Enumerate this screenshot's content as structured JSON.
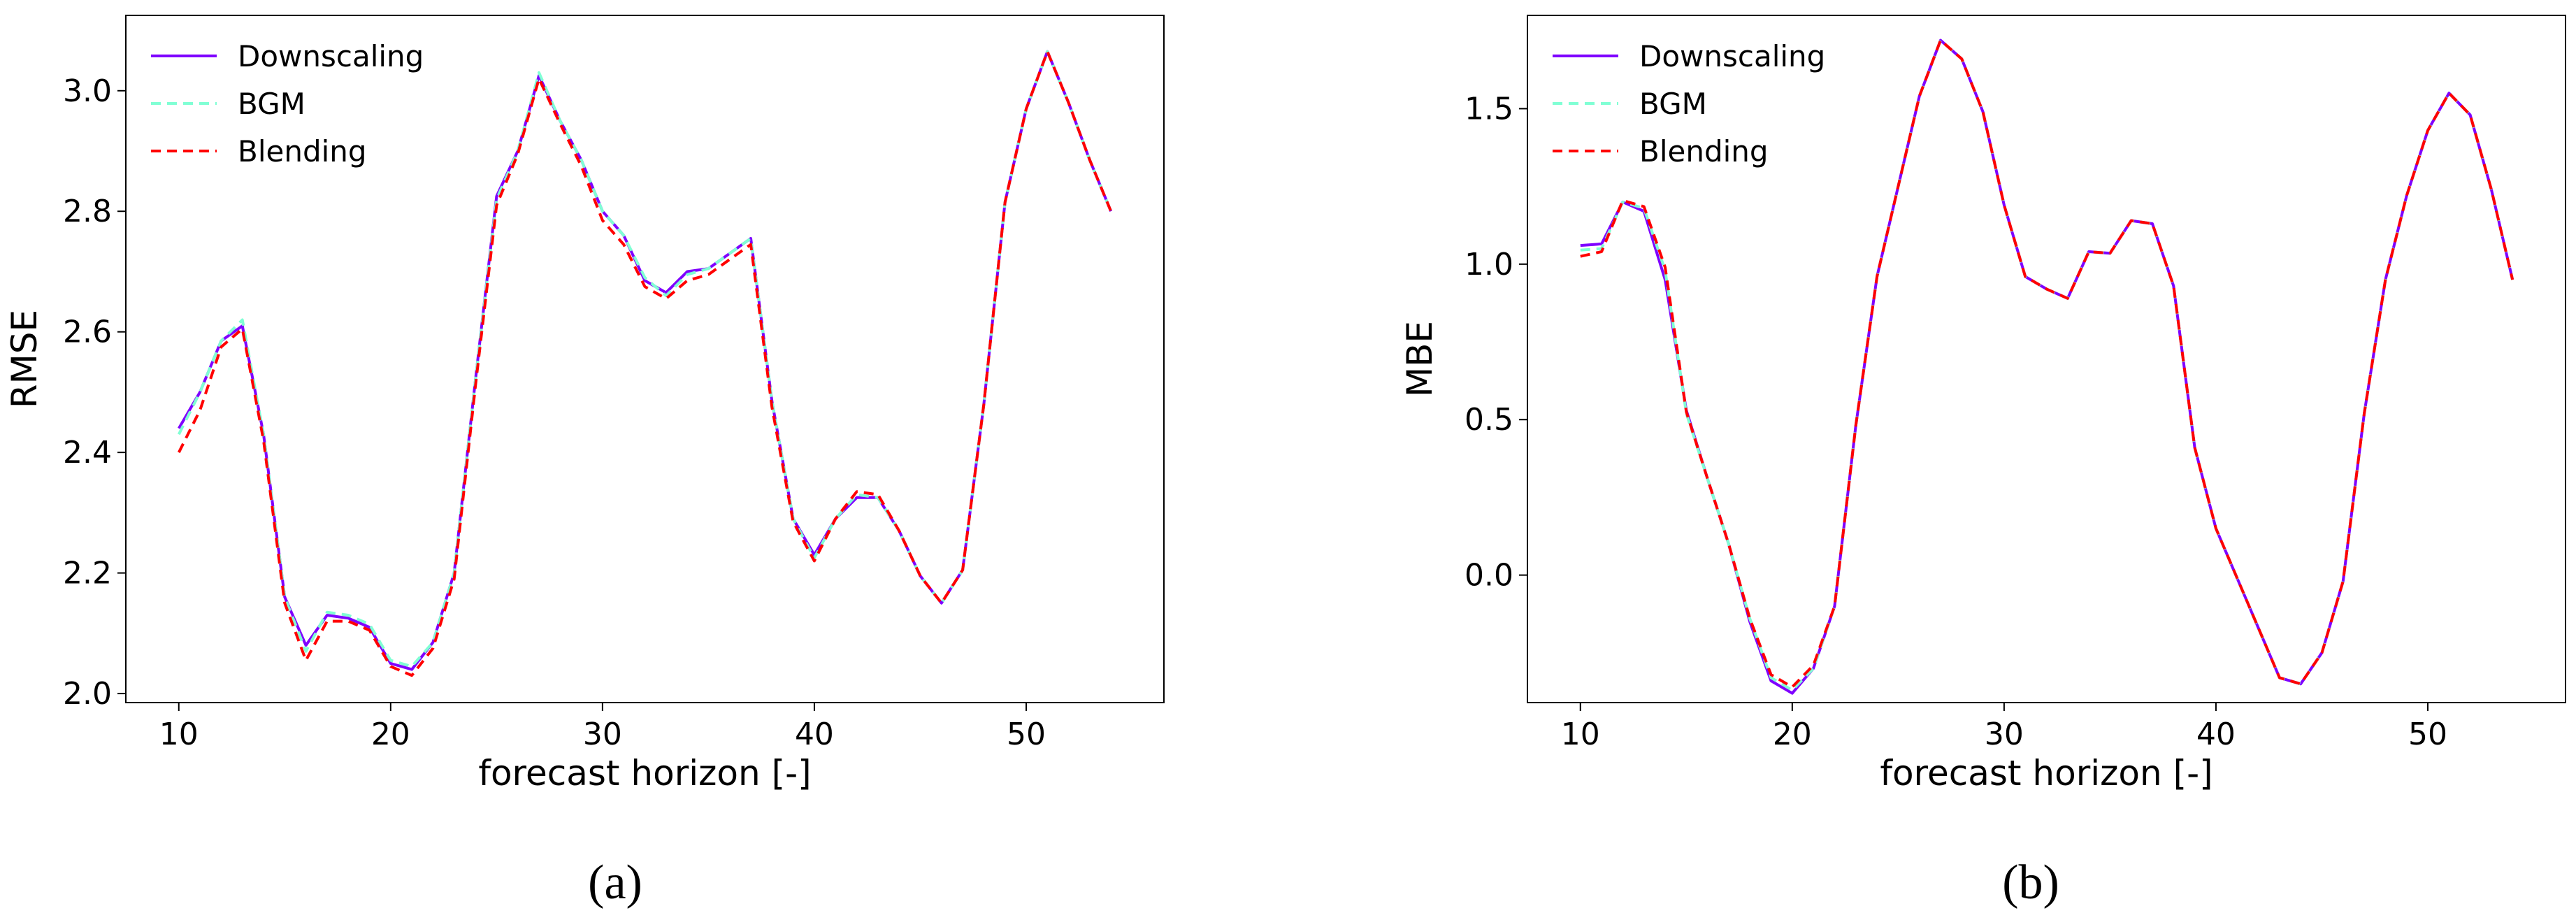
{
  "chart_data": [
    {
      "type": "line",
      "panel_label": "(a)",
      "xlabel": "forecast horizon [-]",
      "ylabel": "RMSE",
      "xlim": [
        7.5,
        56.5
      ],
      "ylim": [
        1.985,
        3.125
      ],
      "xticks": [
        10,
        20,
        30,
        40,
        50
      ],
      "yticks": [
        2.0,
        2.2,
        2.4,
        2.6,
        2.8,
        3.0
      ],
      "ytick_labels": [
        "2.0",
        "2.2",
        "2.4",
        "2.6",
        "2.8",
        "3.0"
      ],
      "legend_position": "upper-left",
      "x": [
        10,
        11,
        12,
        13,
        14,
        15,
        16,
        17,
        18,
        19,
        20,
        21,
        22,
        23,
        24,
        25,
        26,
        27,
        28,
        29,
        30,
        31,
        32,
        33,
        34,
        35,
        36,
        37,
        38,
        39,
        40,
        41,
        42,
        43,
        44,
        45,
        46,
        47,
        48,
        49,
        50,
        51,
        52,
        53,
        54
      ],
      "series": [
        {
          "name": "Downscaling",
          "color": "#7f00ff",
          "style": "solid",
          "values": [
            2.44,
            2.5,
            2.585,
            2.61,
            2.43,
            2.16,
            2.08,
            2.13,
            2.125,
            2.11,
            2.05,
            2.04,
            2.085,
            2.2,
            2.52,
            2.825,
            2.9,
            3.025,
            2.95,
            2.885,
            2.8,
            2.76,
            2.685,
            2.665,
            2.7,
            2.705,
            2.73,
            2.755,
            2.485,
            2.29,
            2.23,
            2.29,
            2.325,
            2.325,
            2.27,
            2.195,
            2.15,
            2.205,
            2.48,
            2.815,
            2.97,
            3.065,
            2.98,
            2.885,
            2.8
          ]
        },
        {
          "name": "BGM",
          "color": "#80ffd4",
          "style": "dashed",
          "values": [
            2.43,
            2.5,
            2.585,
            2.62,
            2.43,
            2.16,
            2.07,
            2.135,
            2.13,
            2.115,
            2.055,
            2.045,
            2.085,
            2.2,
            2.52,
            2.82,
            2.9,
            3.03,
            2.95,
            2.885,
            2.8,
            2.76,
            2.69,
            2.66,
            2.695,
            2.705,
            2.73,
            2.755,
            2.485,
            2.29,
            2.225,
            2.29,
            2.33,
            2.325,
            2.27,
            2.195,
            2.15,
            2.205,
            2.48,
            2.815,
            2.97,
            3.065,
            2.98,
            2.885,
            2.8
          ]
        },
        {
          "name": "Blending",
          "color": "#ff0000",
          "style": "dashed",
          "values": [
            2.4,
            2.47,
            2.575,
            2.605,
            2.42,
            2.15,
            2.055,
            2.12,
            2.12,
            2.105,
            2.045,
            2.03,
            2.075,
            2.19,
            2.51,
            2.81,
            2.895,
            3.02,
            2.945,
            2.875,
            2.785,
            2.745,
            2.675,
            2.655,
            2.685,
            2.695,
            2.72,
            2.745,
            2.475,
            2.285,
            2.22,
            2.29,
            2.335,
            2.33,
            2.27,
            2.195,
            2.15,
            2.205,
            2.48,
            2.815,
            2.97,
            3.065,
            2.98,
            2.885,
            2.8
          ]
        }
      ]
    },
    {
      "type": "line",
      "panel_label": "(b)",
      "xlabel": "forecast horizon [-]",
      "ylabel": "MBE",
      "xlim": [
        7.5,
        56.5
      ],
      "ylim": [
        -0.41,
        1.8
      ],
      "xticks": [
        10,
        20,
        30,
        40,
        50
      ],
      "yticks": [
        0.0,
        0.5,
        1.0,
        1.5
      ],
      "ytick_labels": [
        "0.0",
        "0.5",
        "1.0",
        "1.5"
      ],
      "legend_position": "upper-left",
      "x": [
        10,
        11,
        12,
        13,
        14,
        15,
        16,
        17,
        18,
        19,
        20,
        21,
        22,
        23,
        24,
        25,
        26,
        27,
        28,
        29,
        30,
        31,
        32,
        33,
        34,
        35,
        36,
        37,
        38,
        39,
        40,
        41,
        42,
        43,
        44,
        45,
        46,
        47,
        48,
        49,
        50,
        51,
        52,
        53,
        54
      ],
      "series": [
        {
          "name": "Downscaling",
          "color": "#7f00ff",
          "style": "solid",
          "values": [
            1.06,
            1.065,
            1.2,
            1.17,
            0.95,
            0.53,
            0.31,
            0.1,
            -0.15,
            -0.34,
            -0.38,
            -0.3,
            -0.1,
            0.48,
            0.96,
            1.25,
            1.54,
            1.72,
            1.66,
            1.49,
            1.19,
            0.96,
            0.92,
            0.89,
            1.04,
            1.035,
            1.14,
            1.13,
            0.93,
            0.41,
            0.15,
            -0.01,
            -0.17,
            -0.33,
            -0.35,
            -0.25,
            -0.02,
            0.52,
            0.95,
            1.22,
            1.43,
            1.55,
            1.48,
            1.24,
            0.95
          ]
        },
        {
          "name": "BGM",
          "color": "#80ffd4",
          "style": "dashed",
          "values": [
            1.045,
            1.05,
            1.2,
            1.18,
            0.98,
            0.52,
            0.31,
            0.1,
            -0.14,
            -0.33,
            -0.37,
            -0.3,
            -0.1,
            0.48,
            0.96,
            1.25,
            1.54,
            1.72,
            1.66,
            1.49,
            1.19,
            0.96,
            0.92,
            0.89,
            1.04,
            1.035,
            1.14,
            1.13,
            0.93,
            0.41,
            0.15,
            -0.01,
            -0.17,
            -0.33,
            -0.35,
            -0.25,
            -0.02,
            0.52,
            0.95,
            1.22,
            1.43,
            1.55,
            1.48,
            1.24,
            0.95
          ]
        },
        {
          "name": "Blending",
          "color": "#ff0000",
          "style": "dashed",
          "values": [
            1.025,
            1.04,
            1.205,
            1.185,
            0.99,
            0.525,
            0.31,
            0.1,
            -0.14,
            -0.32,
            -0.36,
            -0.29,
            -0.1,
            0.48,
            0.96,
            1.25,
            1.54,
            1.72,
            1.66,
            1.49,
            1.19,
            0.96,
            0.92,
            0.89,
            1.04,
            1.035,
            1.14,
            1.13,
            0.93,
            0.41,
            0.15,
            -0.01,
            -0.17,
            -0.33,
            -0.35,
            -0.25,
            -0.02,
            0.52,
            0.95,
            1.22,
            1.43,
            1.55,
            1.48,
            1.24,
            0.95
          ]
        }
      ]
    }
  ]
}
